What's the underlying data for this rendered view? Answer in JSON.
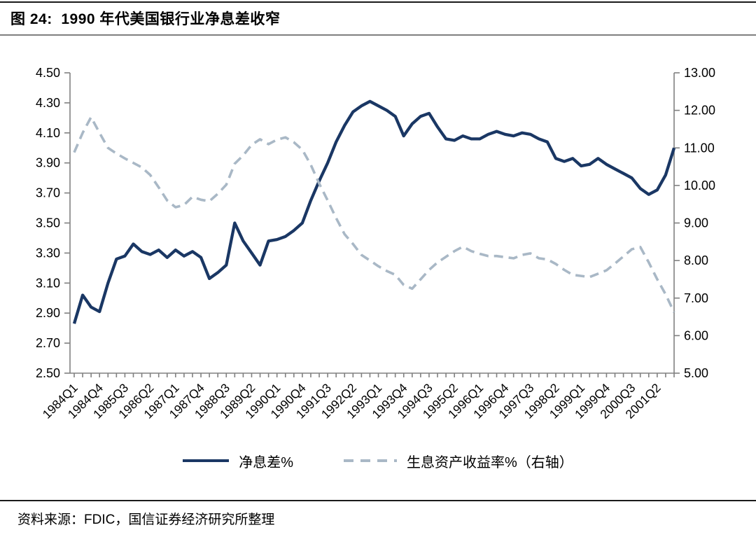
{
  "figure": {
    "title": "图 24:  1990 年代美国银行业净息差收窄"
  },
  "source_note": "资料来源：FDIC，国信证券经济研究所整理",
  "colors": {
    "nim_line": "#1a3764",
    "yield_line": "#a9b8c6",
    "axis": "#808080",
    "text": "#000000",
    "background": "#ffffff"
  },
  "chart_data": {
    "type": "line",
    "title": "图 24: 1990 年代美国银行业净息差收窄",
    "x_range": [
      "1984Q1",
      "2001Q4"
    ],
    "n_points": 72,
    "x_quarters_per_label": 3,
    "x_tick_labels": [
      "1984Q1",
      "1984Q4",
      "1985Q3",
      "1986Q2",
      "1987Q1",
      "1987Q4",
      "1988Q3",
      "1989Q2",
      "1990Q1",
      "1990Q4",
      "1991Q3",
      "1992Q2",
      "1993Q1",
      "1993Q4",
      "1994Q3",
      "1995Q2",
      "1996Q1",
      "1996Q4",
      "1997Q3",
      "1998Q2",
      "1999Q1",
      "1999Q4",
      "2000Q3",
      "2001Q2"
    ],
    "left_axis": {
      "min": 2.5,
      "max": 4.5,
      "step": 0.2,
      "tick_labels": [
        "4.50",
        "4.30",
        "4.10",
        "3.90",
        "3.70",
        "3.50",
        "3.30",
        "3.10",
        "2.90",
        "2.70",
        "2.50"
      ]
    },
    "right_axis": {
      "min": 5.0,
      "max": 13.0,
      "step": 1.0,
      "tick_labels": [
        "13.00",
        "12.00",
        "11.00",
        "10.00",
        "9.00",
        "8.00",
        "7.00",
        "6.00",
        "5.00"
      ]
    },
    "grid": false,
    "legend_position": "bottom",
    "series": [
      {
        "name": "净息差%",
        "axis": "left",
        "line_style": "solid",
        "color": "#1a3764",
        "values": [
          2.83,
          3.02,
          2.94,
          2.91,
          3.1,
          3.26,
          3.28,
          3.36,
          3.31,
          3.29,
          3.32,
          3.27,
          3.32,
          3.28,
          3.31,
          3.27,
          3.13,
          3.17,
          3.22,
          3.5,
          3.38,
          3.3,
          3.22,
          3.38,
          3.39,
          3.41,
          3.45,
          3.5,
          3.65,
          3.78,
          3.9,
          4.04,
          4.15,
          4.24,
          4.28,
          4.31,
          4.28,
          4.25,
          4.21,
          4.08,
          4.16,
          4.21,
          4.23,
          4.14,
          4.06,
          4.05,
          4.08,
          4.06,
          4.06,
          4.09,
          4.11,
          4.09,
          4.08,
          4.1,
          4.09,
          4.06,
          4.04,
          3.93,
          3.91,
          3.93,
          3.88,
          3.89,
          3.93,
          3.89,
          3.86,
          3.83,
          3.8,
          3.73,
          3.69,
          3.72,
          3.82,
          4.0
        ]
      },
      {
        "name": "生息资产收益率%（右轴）",
        "axis": "right",
        "line_style": "dashed",
        "color": "#a9b8c6",
        "values": [
          10.88,
          11.4,
          11.82,
          11.4,
          11.0,
          10.85,
          10.72,
          10.6,
          10.48,
          10.28,
          9.95,
          9.6,
          9.42,
          9.48,
          9.7,
          9.62,
          9.58,
          9.78,
          10.02,
          10.58,
          10.8,
          11.08,
          11.23,
          11.1,
          11.22,
          11.28,
          11.15,
          10.95,
          10.55,
          10.05,
          9.6,
          9.13,
          8.7,
          8.44,
          8.15,
          8.0,
          7.85,
          7.72,
          7.62,
          7.35,
          7.25,
          7.5,
          7.75,
          7.95,
          8.1,
          8.25,
          8.37,
          8.25,
          8.18,
          8.12,
          8.12,
          8.09,
          8.06,
          8.15,
          8.19,
          8.06,
          8.03,
          7.91,
          7.75,
          7.62,
          7.59,
          7.56,
          7.65,
          7.74,
          7.92,
          8.11,
          8.3,
          8.36,
          7.95,
          7.5,
          7.1,
          6.62
        ]
      }
    ]
  }
}
